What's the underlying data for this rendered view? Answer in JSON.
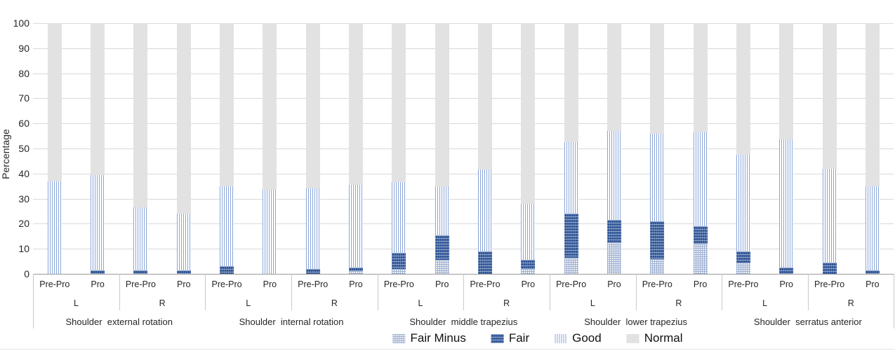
{
  "chart_data": {
    "type": "bar",
    "stacked": true,
    "title": "",
    "xlabel": "",
    "ylabel": "Percentage",
    "ylim": [
      0,
      100
    ],
    "yticks": [
      0,
      10,
      20,
      30,
      40,
      50,
      60,
      70,
      80,
      90,
      100
    ],
    "grid": true,
    "legend_position": "bottom",
    "series_order": [
      "Fair Minus",
      "Fair",
      "Good",
      "Normal"
    ],
    "legend": [
      {
        "name": "Fair Minus",
        "pattern": "dotted-light",
        "color": "#9dafd0"
      },
      {
        "name": "Fair",
        "pattern": "dotted-dark",
        "color": "#2f5597"
      },
      {
        "name": "Good",
        "pattern": "vertical-stripes",
        "color": "#89a5d8"
      },
      {
        "name": "Normal",
        "pattern": "solid",
        "color": "#e2e2e2"
      }
    ],
    "groups": [
      {
        "label": "Shoulder  external rotation",
        "sides": [
          {
            "label": "L",
            "bars": [
              {
                "label": "Pre-Pro",
                "segments": [
                  0,
                  0,
                  37,
                  63
                ]
              },
              {
                "label": "Pro",
                "segments": [
                  0,
                  1.5,
                  38,
                  60.5
                ]
              }
            ]
          },
          {
            "label": "R",
            "bars": [
              {
                "label": "Pre-Pro",
                "segments": [
                  0,
                  1.5,
                  25,
                  73.5
                ]
              },
              {
                "label": "Pro",
                "segments": [
                  0,
                  1.5,
                  22.5,
                  76
                ]
              }
            ]
          }
        ]
      },
      {
        "label": "Shoulder  internal rotation",
        "sides": [
          {
            "label": "L",
            "bars": [
              {
                "label": "Pre-Pro",
                "segments": [
                  0,
                  3,
                  32,
                  65
                ]
              },
              {
                "label": "Pro",
                "segments": [
                  0,
                  0,
                  33.5,
                  66.5
                ]
              }
            ]
          },
          {
            "label": "R",
            "bars": [
              {
                "label": "Pre-Pro",
                "segments": [
                  0,
                  2,
                  32,
                  66
                ]
              },
              {
                "label": "Pro",
                "segments": [
                  1,
                  1.5,
                  33,
                  64.5
                ]
              }
            ]
          }
        ]
      },
      {
        "label": "Shoulder  middle trapezius",
        "sides": [
          {
            "label": "L",
            "bars": [
              {
                "label": "Pre-Pro",
                "segments": [
                  2,
                  6.5,
                  28,
                  63.5
                ]
              },
              {
                "label": "Pro",
                "segments": [
                  5.5,
                  10,
                  19.5,
                  65
                ]
              }
            ]
          },
          {
            "label": "R",
            "bars": [
              {
                "label": "Pre-Pro",
                "segments": [
                  0,
                  9,
                  32.5,
                  58.5
                ]
              },
              {
                "label": "Pro",
                "segments": [
                  2,
                  3.5,
                  22.5,
                  72
                ]
              }
            ]
          }
        ]
      },
      {
        "label": "Shoulder  lower trapezius",
        "sides": [
          {
            "label": "L",
            "bars": [
              {
                "label": "Pre-Pro",
                "segments": [
                  6.5,
                  17.5,
                  28.5,
                  47.5
                ]
              },
              {
                "label": "Pro",
                "segments": [
                  12.5,
                  9,
                  35.5,
                  43
                ]
              }
            ]
          },
          {
            "label": "R",
            "bars": [
              {
                "label": "Pre-Pro",
                "segments": [
                  6,
                  15,
                  35,
                  44
                ]
              },
              {
                "label": "Pro",
                "segments": [
                  12,
                  7,
                  37.5,
                  43.5
                ]
              }
            ]
          }
        ]
      },
      {
        "label": "Shoulder  serratus anterior",
        "sides": [
          {
            "label": "L",
            "bars": [
              {
                "label": "Pre-Pro",
                "segments": [
                  4.5,
                  4.5,
                  38.5,
                  52.5
                ]
              },
              {
                "label": "Pro",
                "segments": [
                  0,
                  2.5,
                  51,
                  46.5
                ]
              }
            ]
          },
          {
            "label": "R",
            "bars": [
              {
                "label": "Pre-Pro",
                "segments": [
                  0,
                  4.5,
                  37.5,
                  58
                ]
              },
              {
                "label": "Pro",
                "segments": [
                  0,
                  1.5,
                  33.5,
                  65
                ]
              }
            ]
          }
        ]
      }
    ]
  }
}
